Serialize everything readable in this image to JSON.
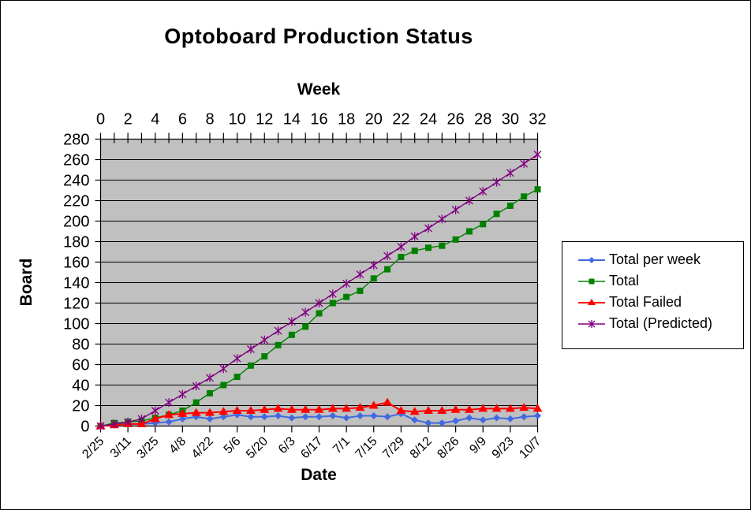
{
  "chart_data": {
    "type": "line",
    "title": "Optoboard Production Status",
    "top_axis": {
      "label": "Week",
      "tick_labels": [
        "0",
        "2",
        "4",
        "6",
        "8",
        "10",
        "12",
        "14",
        "16",
        "18",
        "20",
        "22",
        "24",
        "26",
        "28",
        "30",
        "32"
      ],
      "range": [
        0,
        32
      ],
      "minor_tick_every": 1
    },
    "bottom_axis": {
      "label": "Date",
      "tick_labels": [
        "2/25",
        "3/11",
        "3/25",
        "4/8",
        "4/22",
        "5/6",
        "5/20",
        "6/3",
        "6/17",
        "7/1",
        "7/15",
        "7/29",
        "8/12",
        "8/26",
        "9/9",
        "9/23",
        "10/7"
      ]
    },
    "y_axis": {
      "label": "Board",
      "tick_labels": [
        "0",
        "20",
        "40",
        "60",
        "80",
        "100",
        "120",
        "140",
        "160",
        "180",
        "200",
        "220",
        "240",
        "260",
        "280"
      ],
      "range": [
        0,
        280
      ],
      "step": 20
    },
    "plot_bg": "#C0C0C0",
    "grid": "horizontal",
    "legend_position": "right",
    "x_weeks": [
      0,
      1,
      2,
      3,
      4,
      5,
      6,
      7,
      8,
      9,
      10,
      11,
      12,
      13,
      14,
      15,
      16,
      17,
      18,
      19,
      20,
      21,
      22,
      23,
      24,
      25,
      26,
      27,
      28,
      29,
      30,
      31,
      32
    ],
    "series": [
      {
        "name": "Total per week",
        "color": "#4169E1",
        "marker": "diamond",
        "values": [
          0,
          2,
          2,
          2,
          3,
          4,
          7,
          9,
          7,
          9,
          11,
          9,
          9,
          10,
          8,
          9,
          9,
          10,
          8,
          10,
          10,
          9,
          12,
          6,
          3,
          3,
          5,
          8,
          6,
          8,
          7,
          9,
          10
        ]
      },
      {
        "name": "Total",
        "color": "#008000",
        "marker": "square",
        "values": [
          0,
          3,
          4,
          5,
          8,
          11,
          15,
          23,
          32,
          40,
          48,
          59,
          68,
          79,
          89,
          97,
          110,
          120,
          126,
          132,
          144,
          153,
          165,
          171,
          174,
          176,
          182,
          190,
          197,
          207,
          215,
          224,
          231
        ]
      },
      {
        "name": "Total Failed",
        "color": "#FF0000",
        "marker": "triangle",
        "values": [
          0,
          1,
          2,
          2,
          7,
          11,
          12,
          13,
          13,
          14,
          15,
          15,
          16,
          17,
          16,
          16,
          16,
          17,
          17,
          18,
          20,
          23,
          15,
          14,
          15,
          15,
          16,
          16,
          17,
          17,
          17,
          18,
          17
        ]
      },
      {
        "name": "Total (Predicted)",
        "color": "#800080",
        "marker": "star",
        "values": [
          0,
          2,
          4,
          7,
          15,
          23,
          31,
          39,
          47,
          56,
          66,
          75,
          84,
          93,
          102,
          111,
          120,
          129,
          139,
          148,
          157,
          166,
          175,
          185,
          193,
          202,
          211,
          220,
          229,
          238,
          247,
          256,
          265
        ]
      }
    ]
  }
}
